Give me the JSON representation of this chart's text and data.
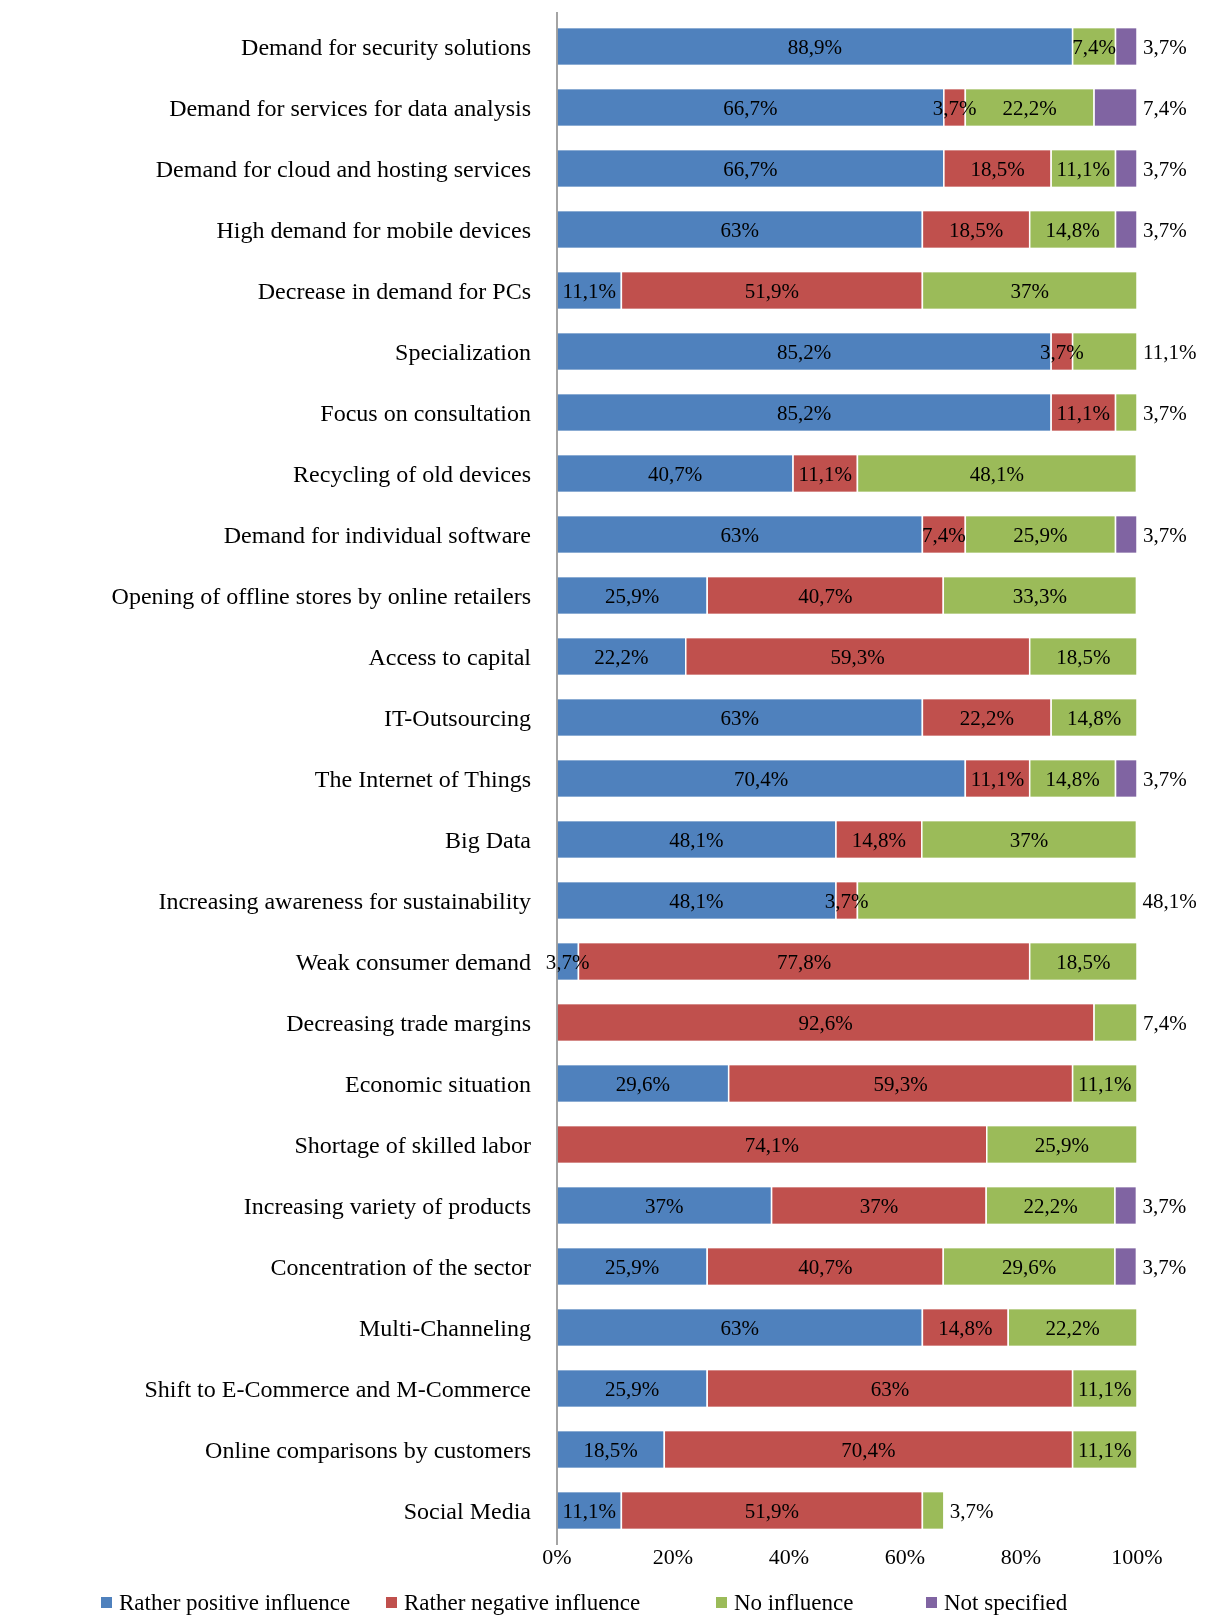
{
  "chart_data": {
    "type": "bar",
    "orientation": "horizontal",
    "stacked": true,
    "legend": "bottom",
    "grid": false,
    "categories": [
      "Demand for security solutions",
      "Demand for services for data analysis",
      "Demand for cloud and hosting services",
      "High demand for mobile devices",
      "Decrease in demand for PCs",
      "Specialization",
      "Focus on consultation",
      "Recycling of old devices",
      "Demand for individual software",
      "Opening of offline stores by online retailers",
      "Access to capital",
      "IT-Outsourcing",
      "The Internet of Things",
      "Big Data",
      "Increasing awareness for sustainability",
      "Weak consumer demand",
      "Decreasing trade margins",
      "Economic situation",
      "Shortage of skilled labor",
      "Increasing variety of products",
      "Concentration of the sector",
      "Multi-Channeling",
      "Shift to E-Commerce and M-Commerce",
      "Online comparisons by customers",
      "Social Media"
    ],
    "xlim": [
      0,
      100
    ],
    "xticks": [
      {
        "value": 0,
        "label": "0%"
      },
      {
        "value": 20,
        "label": "20%"
      },
      {
        "value": 40,
        "label": "40%"
      },
      {
        "value": 60,
        "label": "60%"
      },
      {
        "value": 80,
        "label": "80%"
      },
      {
        "value": 100,
        "label": "100%"
      }
    ],
    "series": [
      {
        "name": "Rather positive influence",
        "color": "#4f81bd",
        "values": [
          88.9,
          66.7,
          66.7,
          63,
          11.1,
          85.2,
          85.2,
          40.7,
          63,
          25.9,
          22.2,
          63,
          70.4,
          48.1,
          48.1,
          3.7,
          null,
          29.6,
          null,
          37,
          25.9,
          63,
          25.9,
          18.5,
          11.1
        ],
        "value_labels": [
          "88,9%",
          "66,7%",
          "66,7%",
          "63%",
          "11,1%",
          "85,2%",
          "85,2%",
          "40,7%",
          "63%",
          "25,9%",
          "22,2%",
          "63%",
          "70,4%",
          "48,1%",
          "48,1%",
          "3,7%",
          null,
          "29,6%",
          null,
          "37%",
          "25,9%",
          "63%",
          "25,9%",
          "18,5%",
          "11,1%"
        ]
      },
      {
        "name": "Rather negative influence",
        "color": "#c0504d",
        "values": [
          null,
          3.7,
          18.5,
          18.5,
          51.9,
          3.7,
          11.1,
          11.1,
          7.4,
          40.7,
          59.3,
          22.2,
          11.1,
          14.8,
          3.7,
          77.8,
          92.6,
          59.3,
          74.1,
          37,
          40.7,
          14.8,
          63,
          70.4,
          51.9
        ],
        "value_labels": [
          null,
          "3,7%",
          "18,5%",
          "18,5%",
          "51,9%",
          "3,7%",
          "11,1%",
          "11,1%",
          "7,4%",
          "40,7%",
          "59,3%",
          "22,2%",
          "11,1%",
          "14,8%",
          "3,7%",
          "77,8%",
          "92,6%",
          "59,3%",
          "74,1%",
          "37%",
          "40,7%",
          "14,8%",
          "63%",
          "70,4%",
          "51,9%"
        ]
      },
      {
        "name": "No influence",
        "color": "#9bbb59",
        "values": [
          7.4,
          22.2,
          11.1,
          14.8,
          37,
          11.1,
          3.7,
          48.1,
          25.9,
          33.3,
          18.5,
          14.8,
          14.8,
          37,
          48.1,
          18.5,
          7.4,
          11.1,
          25.9,
          22.2,
          29.6,
          22.2,
          11.1,
          11.1,
          3.7
        ],
        "value_labels": [
          "7,4%",
          "22,2%",
          "11,1%",
          "14,8%",
          "37%",
          "11,1%",
          "3,7%",
          "48,1%",
          "25,9%",
          "33,3%",
          "18,5%",
          "14,8%",
          "14,8%",
          "37%",
          "48,1%",
          "18,5%",
          "7,4%",
          "11,1%",
          "25,9%",
          "22,2%",
          "29,6%",
          "22,2%",
          "11,1%",
          "11,1%",
          "3,7%"
        ]
      },
      {
        "name": "Not specified",
        "color": "#8064a2",
        "values": [
          3.7,
          7.4,
          3.7,
          3.7,
          null,
          null,
          null,
          null,
          3.7,
          null,
          null,
          null,
          3.7,
          null,
          null,
          null,
          null,
          null,
          null,
          3.7,
          3.7,
          null,
          null,
          null,
          null
        ],
        "value_labels": [
          "3,7%",
          "7,4%",
          "3,7%",
          "3,7%",
          null,
          null,
          null,
          null,
          "3,7%",
          null,
          null,
          null,
          "3,7%",
          null,
          null,
          null,
          null,
          null,
          null,
          "3,7%",
          "3,7%",
          null,
          null,
          null,
          null
        ]
      }
    ]
  }
}
